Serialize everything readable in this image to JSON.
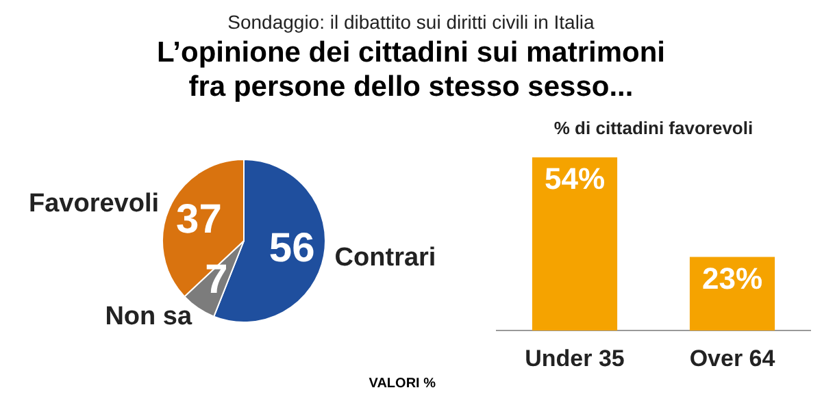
{
  "chart_data": [
    {
      "type": "pie",
      "subtitle": "Sondaggio: il dibattito sui diritti civili in Italia",
      "title": "L’opinione dei cittadini sui matrimoni fra persone dello stesso sesso...",
      "categories": [
        "Contrari",
        "Non sa",
        "Favorevoli"
      ],
      "values": [
        56,
        7,
        37
      ],
      "colors": [
        "#1f4f9e",
        "#7c7c7c",
        "#d9730f"
      ],
      "data_labels": true,
      "annotations": [
        "VALORI %"
      ]
    },
    {
      "type": "bar",
      "title": "% di cittadini favorevoli",
      "categories": [
        "Under 35",
        "Over 64"
      ],
      "values": [
        54,
        23
      ],
      "color": "#f5a300",
      "value_labels": [
        "54%",
        "23%"
      ]
    }
  ]
}
